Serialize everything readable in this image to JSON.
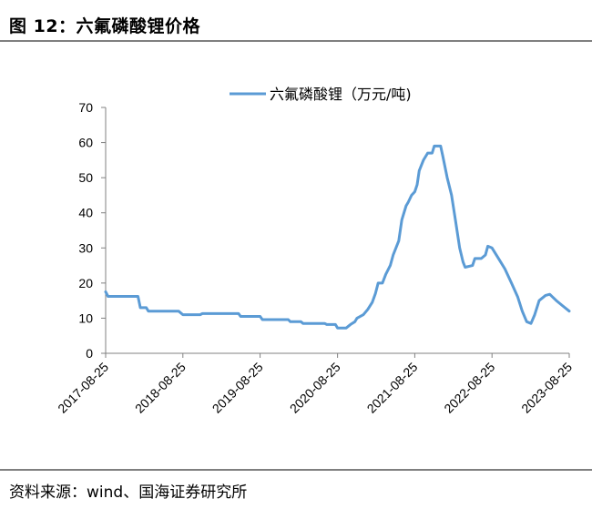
{
  "figure_title": "图 12：六氟磷酸锂价格",
  "source_note": "资料来源：wind、国海证券研究所",
  "chart_data": {
    "type": "line",
    "title": "",
    "xlabel": "",
    "ylabel": "",
    "ylim": [
      0,
      70
    ],
    "yticks": [
      0,
      10,
      20,
      30,
      40,
      50,
      60,
      70
    ],
    "xlim": [
      "2017-08-25",
      "2023-08-25"
    ],
    "xticks": [
      "2017-08-25",
      "2018-08-25",
      "2019-08-25",
      "2020-08-25",
      "2021-08-25",
      "2022-08-25",
      "2023-08-25"
    ],
    "grid": false,
    "legend_position": "top-center",
    "series": [
      {
        "name": "六氟磷酸锂（万元/吨)",
        "color": "#5b9bd5",
        "points": [
          [
            "2017-08-25",
            17.5
          ],
          [
            "2017-09-05",
            16.2
          ],
          [
            "2018-01-25",
            16.2
          ],
          [
            "2018-02-05",
            13
          ],
          [
            "2018-03-05",
            13
          ],
          [
            "2018-03-15",
            12
          ],
          [
            "2018-08-05",
            12
          ],
          [
            "2018-08-25",
            11
          ],
          [
            "2018-11-15",
            11
          ],
          [
            "2018-11-25",
            11.3
          ],
          [
            "2019-05-15",
            11.3
          ],
          [
            "2019-05-25",
            10.5
          ],
          [
            "2019-08-25",
            10.5
          ],
          [
            "2019-09-05",
            9.6
          ],
          [
            "2020-01-05",
            9.6
          ],
          [
            "2020-01-15",
            9
          ],
          [
            "2020-03-05",
            9
          ],
          [
            "2020-03-15",
            8.5
          ],
          [
            "2020-06-25",
            8.5
          ],
          [
            "2020-07-05",
            8.2
          ],
          [
            "2020-08-15",
            8.2
          ],
          [
            "2020-08-25",
            7.2
          ],
          [
            "2020-10-05",
            7.2
          ],
          [
            "2020-10-25",
            8.2
          ],
          [
            "2020-11-15",
            9
          ],
          [
            "2020-11-25",
            10
          ],
          [
            "2020-12-25",
            11
          ],
          [
            "2021-01-15",
            12.5
          ],
          [
            "2021-02-05",
            14.5
          ],
          [
            "2021-02-20",
            17
          ],
          [
            "2021-03-05",
            20
          ],
          [
            "2021-03-25",
            20
          ],
          [
            "2021-04-10",
            22.5
          ],
          [
            "2021-05-01",
            25
          ],
          [
            "2021-05-15",
            28
          ],
          [
            "2021-06-10",
            32
          ],
          [
            "2021-06-25",
            38
          ],
          [
            "2021-07-15",
            42
          ],
          [
            "2021-07-25",
            43
          ],
          [
            "2021-08-10",
            45
          ],
          [
            "2021-08-25",
            46
          ],
          [
            "2021-09-05",
            48
          ],
          [
            "2021-09-15",
            52
          ],
          [
            "2021-10-05",
            55
          ],
          [
            "2021-10-25",
            57
          ],
          [
            "2021-11-15",
            57
          ],
          [
            "2021-11-25",
            59
          ],
          [
            "2021-12-25",
            59
          ],
          [
            "2022-01-05",
            56
          ],
          [
            "2022-01-25",
            50
          ],
          [
            "2022-02-15",
            45
          ],
          [
            "2022-03-05",
            38
          ],
          [
            "2022-03-25",
            30
          ],
          [
            "2022-04-10",
            26
          ],
          [
            "2022-04-20",
            24.5
          ],
          [
            "2022-05-25",
            25
          ],
          [
            "2022-06-05",
            27
          ],
          [
            "2022-07-05",
            27
          ],
          [
            "2022-07-25",
            28
          ],
          [
            "2022-08-05",
            30.5
          ],
          [
            "2022-08-25",
            30
          ],
          [
            "2022-09-25",
            27
          ],
          [
            "2022-10-25",
            24
          ],
          [
            "2022-11-25",
            20
          ],
          [
            "2022-12-25",
            16
          ],
          [
            "2023-01-15",
            12
          ],
          [
            "2023-02-05",
            9
          ],
          [
            "2023-02-25",
            8.5
          ],
          [
            "2023-03-15",
            11
          ],
          [
            "2023-04-05",
            15
          ],
          [
            "2023-05-05",
            16.5
          ],
          [
            "2023-05-25",
            16.8
          ],
          [
            "2023-06-25",
            15
          ],
          [
            "2023-07-25",
            13.5
          ],
          [
            "2023-08-25",
            12
          ]
        ]
      }
    ]
  }
}
